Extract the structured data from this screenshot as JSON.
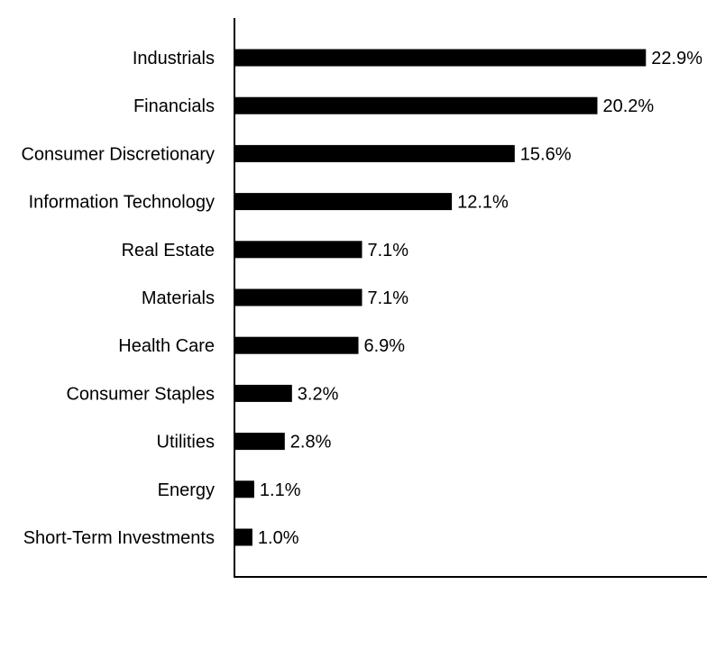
{
  "chart_data": {
    "type": "bar",
    "orientation": "horizontal",
    "categories": [
      "Industrials",
      "Financials",
      "Consumer Discretionary",
      "Information Technology",
      "Real Estate",
      "Materials",
      "Health Care",
      "Consumer Staples",
      "Utilities",
      "Energy",
      "Short-Term Investments"
    ],
    "values": [
      22.9,
      20.2,
      15.6,
      12.1,
      7.1,
      7.1,
      6.9,
      3.2,
      2.8,
      1.1,
      1.0
    ],
    "value_labels": [
      "22.9%",
      "20.2%",
      "15.6%",
      "12.1%",
      "7.1%",
      "7.1%",
      "6.9%",
      "3.2%",
      "2.8%",
      "1.1%",
      "1.0%"
    ],
    "title": "",
    "xlabel": "",
    "ylabel": "",
    "xlim": [
      0,
      26.3
    ],
    "grid": false,
    "legend": "none",
    "bar_color": "#000000"
  }
}
